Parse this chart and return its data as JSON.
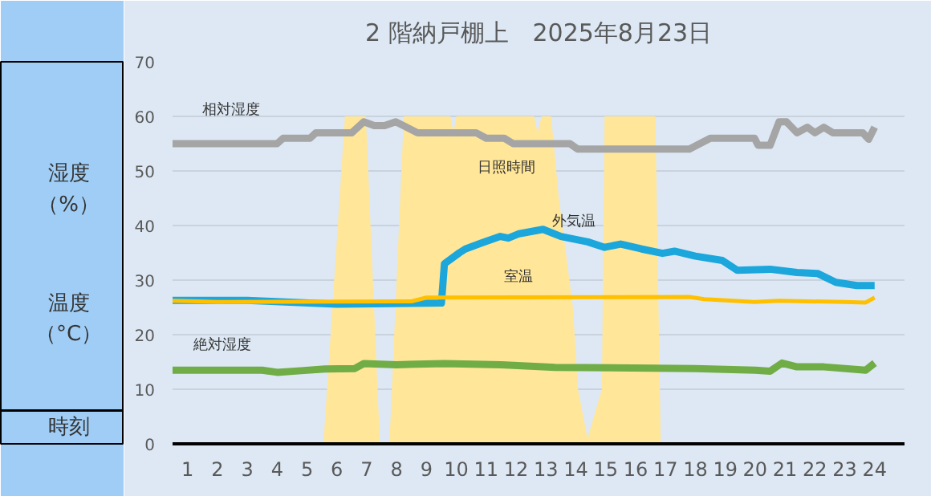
{
  "chart_data": {
    "type": "line",
    "title": "2 階納戸棚上　2025年8月23日",
    "xlabel": "時刻",
    "annotations": [
      "湿度",
      "（%）",
      "温度",
      "（°C）"
    ],
    "xlim": [
      0.5,
      25
    ],
    "xticks": [
      1,
      2,
      3,
      4,
      5,
      6,
      7,
      8,
      9,
      10,
      11,
      12,
      13,
      14,
      15,
      16,
      17,
      18,
      19,
      20,
      21,
      22,
      23,
      24
    ],
    "ylim": [
      0,
      70
    ],
    "yticks": [
      0,
      10,
      20,
      30,
      40,
      50,
      60,
      70
    ],
    "grid": "y",
    "series": [
      {
        "name": "日照時間",
        "type": "area",
        "color": "#ffe699",
        "x": [
          0.5,
          5.55,
          6.27,
          6.97,
          7.44,
          7.76,
          8.24,
          9.8,
          9.9,
          10.0,
          12.6,
          12.72,
          12.85,
          13.17,
          13.43,
          13.9,
          14.07,
          14.39,
          14.87,
          14.96,
          16.66,
          16.84,
          24
        ],
        "values": [
          0,
          0,
          60,
          60,
          0,
          0,
          60,
          60,
          57,
          60,
          60,
          57,
          60,
          60,
          45,
          25,
          10,
          1,
          10,
          60,
          60,
          0,
          0
        ]
      },
      {
        "name": "相対湿度",
        "color": "#a5a5a5",
        "x": [
          0.5,
          4.0,
          4.2,
          5.1,
          5.3,
          6.5,
          6.9,
          7.25,
          7.6,
          7.97,
          8.7,
          10.66,
          11.0,
          11.6,
          11.9,
          13.8,
          14.06,
          17.8,
          18.5,
          19.98,
          20.1,
          20.5,
          20.8,
          21.05,
          21.4,
          21.75,
          22.0,
          22.3,
          22.6,
          23.6,
          23.8,
          24.0
        ],
        "values": [
          55,
          55,
          56,
          56,
          57,
          57,
          59,
          58.3,
          58.3,
          59,
          57,
          57,
          56,
          56,
          55,
          55,
          54,
          54,
          56,
          56,
          54.7,
          54.7,
          59,
          59,
          57,
          58,
          57,
          58,
          57,
          57,
          55.8,
          58
        ]
      },
      {
        "name": "絶対湿度",
        "color": "#70ad47",
        "x": [
          0.5,
          3.5,
          4.0,
          4.8,
          5.6,
          6.6,
          6.9,
          8.0,
          9.6,
          11.5,
          13.3,
          18.0,
          20.0,
          20.5,
          20.9,
          21.4,
          22.3,
          23.7,
          24.0
        ],
        "values": [
          13.5,
          13.5,
          13.1,
          13.4,
          13.7,
          13.8,
          14.7,
          14.5,
          14.7,
          14.5,
          14.0,
          13.8,
          13.5,
          13.3,
          14.8,
          14.1,
          14.1,
          13.5,
          14.8
        ]
      },
      {
        "name": "外気温",
        "color": "#1ba6dc",
        "x": [
          0.5,
          3.0,
          6.0,
          9.5,
          9.6,
          10.1,
          10.3,
          10.84,
          11.47,
          11.74,
          12.1,
          12.9,
          13.5,
          14.4,
          14.96,
          15.5,
          16.2,
          16.9,
          17.3,
          18.0,
          18.9,
          19.4,
          20.5,
          21.4,
          22.1,
          22.7,
          23.4,
          24.0
        ],
        "values": [
          26.3,
          26.3,
          25.6,
          25.8,
          33.0,
          35.0,
          35.7,
          36.8,
          38.0,
          37.7,
          38.5,
          39.3,
          38.0,
          37.0,
          36.0,
          36.6,
          35.7,
          34.9,
          35.3,
          34.4,
          33.6,
          31.8,
          32.0,
          31.4,
          31.2,
          29.6,
          29.0,
          29.0
        ]
      },
      {
        "name": "室温",
        "color": "#ffc000",
        "x": [
          0.5,
          2.0,
          8.5,
          9.0,
          17.8,
          18.3,
          19.98,
          20.8,
          23.0,
          23.7,
          24.0
        ],
        "values": [
          26.2,
          26.0,
          26.1,
          26.8,
          26.9,
          26.5,
          26.0,
          26.2,
          26.0,
          25.9,
          26.8
        ]
      }
    ]
  }
}
